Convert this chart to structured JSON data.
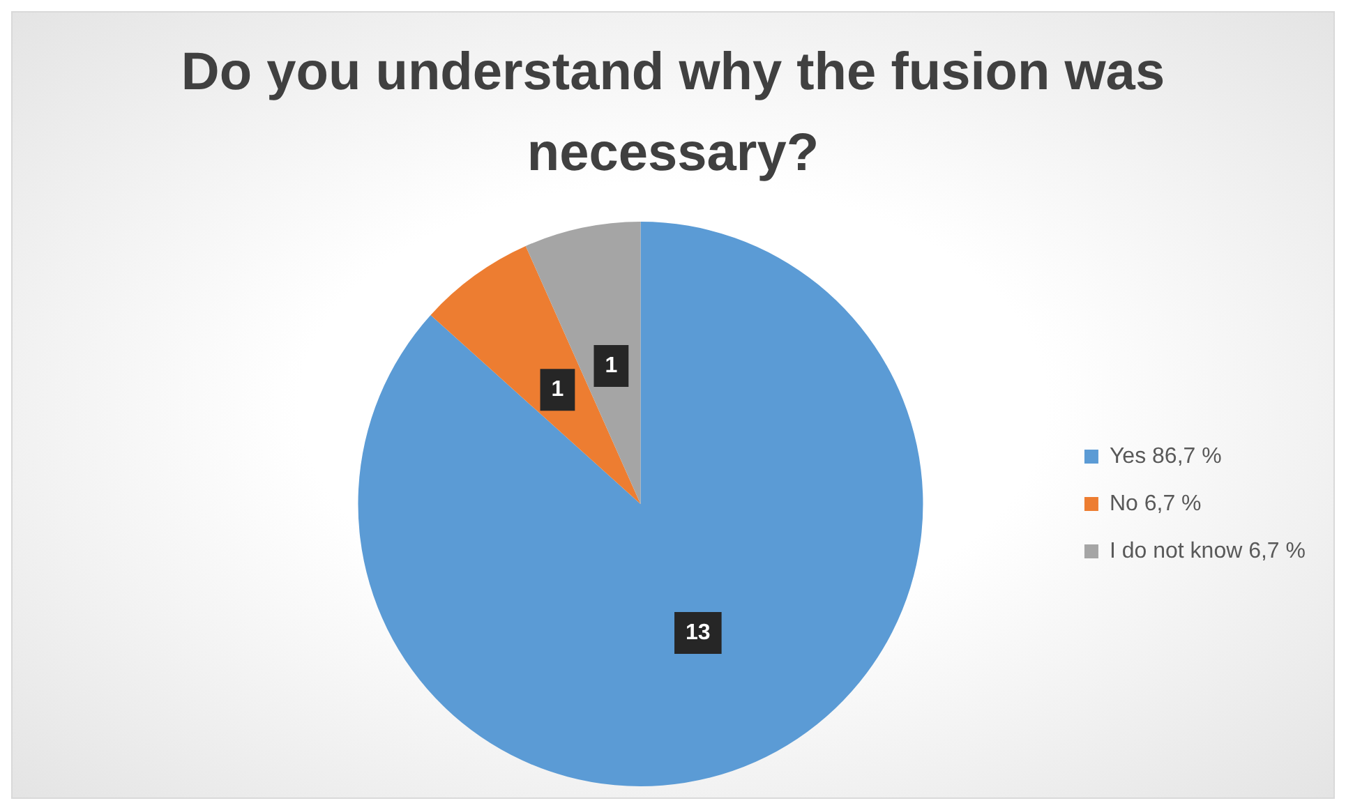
{
  "chart_data": {
    "type": "pie",
    "title": "Do you understand why the fusion was necessary?",
    "categories": [
      "Yes 86,7 %",
      "No 6,7 %",
      "I do not know 6,7 %"
    ],
    "values": [
      13,
      1,
      1
    ],
    "colors": [
      "#5b9bd5",
      "#ed7d31",
      "#a5a5a5"
    ],
    "data_labels": true,
    "legend": "right"
  }
}
